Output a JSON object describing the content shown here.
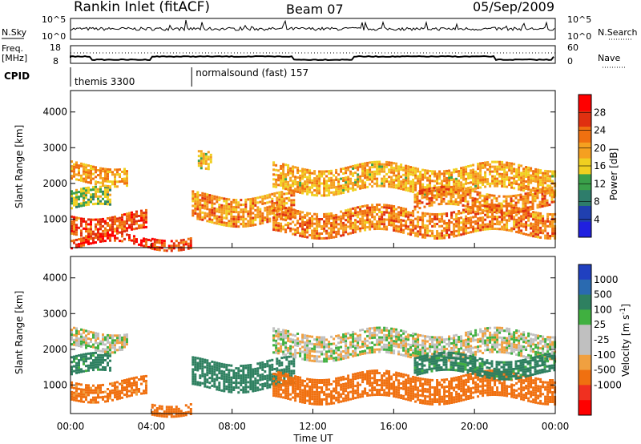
{
  "header": {
    "title": "Rankin Inlet (fitACF)",
    "beam": "Beam 07",
    "date": "05/Sep/2009"
  },
  "param_panels": {
    "nsky_label": "N.Sky",
    "nsearch_label": "N.Search",
    "noise_left_ticks": [
      "10^5",
      "10^0"
    ],
    "noise_right_ticks": [
      "10^5",
      "10^0"
    ],
    "freq_label": "Freq.",
    "freq_unit": "[MHz]",
    "freq_ticks": [
      "18",
      "8"
    ],
    "nave_label": "Nave",
    "nave_ticks": [
      "60",
      "0"
    ],
    "cpid_label": "CPID",
    "cpid_modes": [
      {
        "name": "themis 3300",
        "start_hour": 0
      },
      {
        "name": "normalsound (fast) 157",
        "start_hour": 6
      }
    ]
  },
  "colors": {
    "power_scale": [
      "#2020e0",
      "#2040b0",
      "#2e7d6b",
      "#3aa04a",
      "#f0d020",
      "#f5a020",
      "#f07010",
      "#e03010",
      "#ff0000"
    ],
    "velocity_scale": [
      "#2040c0",
      "#2a6ab0",
      "#2e8060",
      "#40b040",
      "#c0c0c0",
      "#c0c0c0",
      "#f0a040",
      "#f07010",
      "#f03020",
      "#ff0000"
    ],
    "ground_scatter": "#b0b0b0"
  },
  "chart_data": [
    {
      "type": "heatmap",
      "quantity": "Power",
      "ylabel": "Slant Range [km]",
      "colorbar_label": "Power [dB]",
      "colorbar_ticks": [
        "4",
        "8",
        "12",
        "16",
        "20",
        "24",
        "28"
      ],
      "colorbar_range": [
        0,
        32
      ],
      "xlim_hours": [
        0,
        24
      ],
      "ylim": [
        200,
        4600
      ],
      "yticks": [
        "1000",
        "2000",
        "3000",
        "4000"
      ],
      "features": [
        {
          "t": [
            0.0,
            3.8
          ],
          "range": [
            650,
            1150
          ],
          "value": 25
        },
        {
          "t": [
            0.0,
            4.0
          ],
          "range": [
            250,
            500
          ],
          "value": 27
        },
        {
          "t": [
            0.0,
            2.0
          ],
          "range": [
            1300,
            1800
          ],
          "value": 14
        },
        {
          "t": [
            0.0,
            2.8
          ],
          "range": [
            2050,
            2550
          ],
          "value": 20
        },
        {
          "t": [
            4.0,
            6.0
          ],
          "range": [
            250,
            550
          ],
          "value": 26
        },
        {
          "t": [
            6.0,
            11.0
          ],
          "range": [
            950,
            1700
          ],
          "value": 21
        },
        {
          "t": [
            6.3,
            7.0
          ],
          "range": [
            2300,
            2800
          ],
          "value": 18
        },
        {
          "t": [
            10.0,
            24.0
          ],
          "range": [
            1800,
            2500
          ],
          "value": 19
        },
        {
          "t": [
            10.0,
            24.0
          ],
          "range": [
            600,
            1300
          ],
          "value": 22
        },
        {
          "t": [
            17.0,
            24.0
          ],
          "range": [
            1300,
            1800
          ],
          "value": 22
        }
      ]
    },
    {
      "type": "heatmap",
      "quantity": "Velocity",
      "ylabel": "Slant Range [km]",
      "colorbar_label": "Velocity [m s^-1]",
      "colorbar_ticks": [
        "1000",
        "500",
        "100",
        "25",
        "-25",
        "-100",
        "-500",
        "-1000"
      ],
      "xlim_hours": [
        0,
        24
      ],
      "ylim": [
        200,
        4600
      ],
      "yticks": [
        "1000",
        "2000",
        "3000",
        "4000"
      ],
      "xlabel": "Time UT",
      "xticks": [
        "00:00",
        "04:00",
        "08:00",
        "12:00",
        "16:00",
        "20:00",
        "00:00"
      ],
      "features": [
        {
          "t": [
            0.0,
            3.8
          ],
          "range": [
            650,
            1150
          ],
          "value": -150
        },
        {
          "t": [
            0.0,
            2.0
          ],
          "range": [
            1300,
            1800
          ],
          "value": 150
        },
        {
          "t": [
            0.0,
            2.8
          ],
          "range": [
            2050,
            2550
          ],
          "value": 0
        },
        {
          "t": [
            4.0,
            6.0
          ],
          "range": [
            250,
            550
          ],
          "value": -200
        },
        {
          "t": [
            6.0,
            11.0
          ],
          "range": [
            950,
            1700
          ],
          "value": 200
        },
        {
          "t": [
            10.0,
            24.0
          ],
          "range": [
            1800,
            2500
          ],
          "value": 0
        },
        {
          "t": [
            10.0,
            24.0
          ],
          "range": [
            600,
            1300
          ],
          "value": -250
        },
        {
          "t": [
            17.0,
            24.0
          ],
          "range": [
            1300,
            1800
          ],
          "value": 150
        }
      ]
    }
  ]
}
